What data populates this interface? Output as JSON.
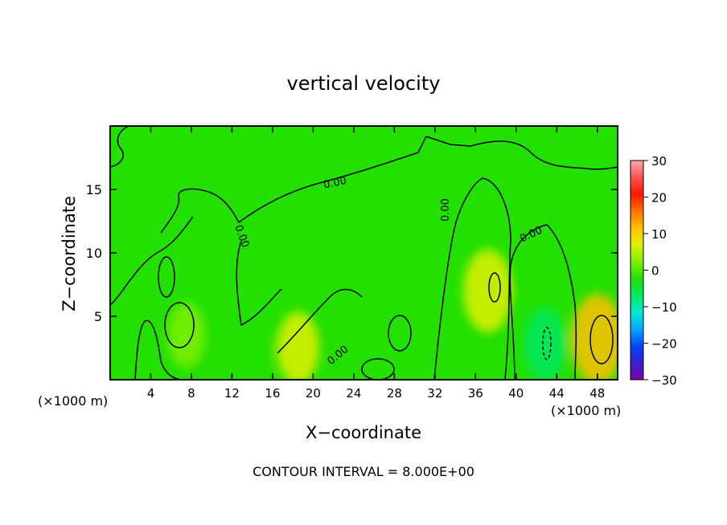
{
  "chart_data": {
    "type": "heatmap",
    "title": "vertical velocity",
    "xlabel": "X−coordinate",
    "ylabel": "Z−coordinate",
    "x_unit_left": "(×1000 m)",
    "x_unit_right": "(×1000 m)",
    "footer": "CONTOUR INTERVAL = 8.000E+00",
    "xlim": [
      0,
      50
    ],
    "ylim": [
      0,
      20
    ],
    "x_ticks": [
      4,
      8,
      12,
      16,
      20,
      24,
      28,
      32,
      36,
      40,
      44,
      48
    ],
    "y_ticks": [
      5,
      10,
      15
    ],
    "colorbar": {
      "range": [
        -30,
        30
      ],
      "ticks": [
        30,
        20,
        10,
        0,
        -10,
        -20,
        -30
      ],
      "tick_labels": [
        "30",
        "20",
        "10",
        "0",
        "−10",
        "−20",
        "−30"
      ],
      "colors": [
        "#7f00a8",
        "#3a1fd0",
        "#0045ff",
        "#00a8ff",
        "#00e8d0",
        "#00e860",
        "#22e000",
        "#7ef000",
        "#e0f000",
        "#ffc000",
        "#ff7000",
        "#ff1800",
        "#ff5050",
        "#ffaaaa"
      ]
    },
    "contour_labels": [
      "0.00",
      "0.00",
      "0.00",
      "0.00",
      "0.00"
    ],
    "updrafts": [
      {
        "x": 48.0,
        "z": 3.2,
        "value": 11
      },
      {
        "x": 37.2,
        "z": 7.0,
        "value": 9
      },
      {
        "x": 18.5,
        "z": 2.5,
        "value": 6
      },
      {
        "x": 7.5,
        "z": 3.5,
        "value": 4
      }
    ],
    "downdrafts": [
      {
        "x": 42.8,
        "z": 2.8,
        "value": -6
      },
      {
        "x": 14.0,
        "z": 2.0,
        "value": -3
      }
    ]
  }
}
